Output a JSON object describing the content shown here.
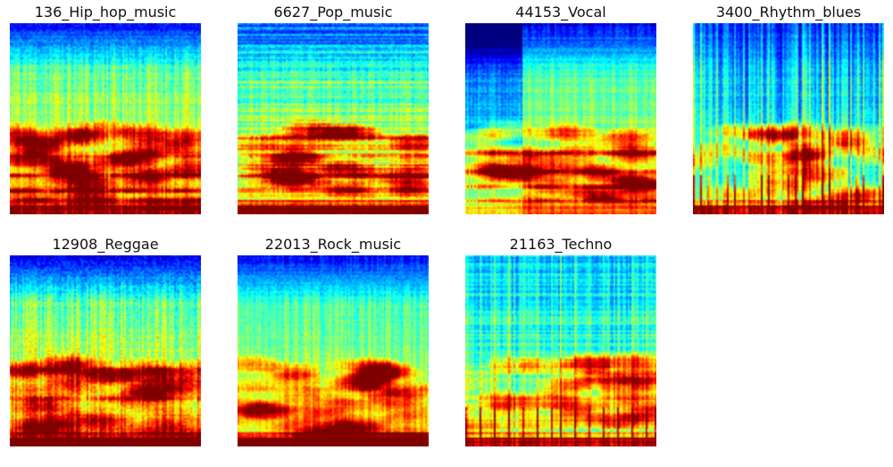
{
  "chart_data": [
    {
      "type": "heatmap",
      "title": "136_Hip_hop_music",
      "colormap": "jet",
      "style": "hiphop"
    },
    {
      "type": "heatmap",
      "title": "6627_Pop_music",
      "colormap": "jet",
      "style": "pop"
    },
    {
      "type": "heatmap",
      "title": "44153_Vocal",
      "colormap": "jet",
      "style": "vocal"
    },
    {
      "type": "heatmap",
      "title": "3400_Rhythm_blues",
      "colormap": "jet",
      "style": "rnb"
    },
    {
      "type": "heatmap",
      "title": "12908_Reggae",
      "colormap": "jet",
      "style": "reggae"
    },
    {
      "type": "heatmap",
      "title": "22013_Rock_music",
      "colormap": "jet",
      "style": "rock"
    },
    {
      "type": "heatmap",
      "title": "21163_Techno",
      "colormap": "jet",
      "style": "techno"
    }
  ]
}
